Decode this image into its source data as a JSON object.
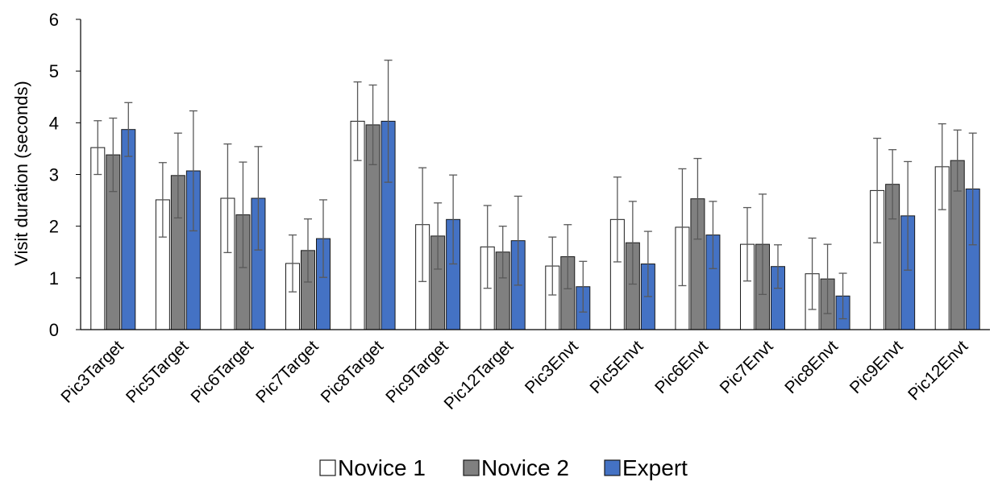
{
  "chart_data": {
    "type": "bar",
    "ylabel": "Visit duration (seconds)",
    "xlabel": "",
    "ylim": [
      0,
      6
    ],
    "yticks": [
      0,
      1,
      2,
      3,
      4,
      5,
      6
    ],
    "grid": false,
    "legend_position": "bottom",
    "categories": [
      "Pic3Target",
      "Pic5Target",
      "Pic6Target",
      "Pic7Target",
      "Pic8Target",
      "Pic9Target",
      "Pic12Target",
      "Pic3Envt",
      "Pic5Envt",
      "Pic6Envt",
      "Pic7Envt",
      "Pic8Envt",
      "Pic9Envt",
      "Pic12Envt"
    ],
    "series": [
      {
        "name": "Novice 1",
        "color": "#ffffff",
        "values": [
          3.52,
          2.51,
          2.54,
          1.28,
          4.03,
          2.03,
          1.6,
          1.23,
          2.13,
          1.98,
          1.65,
          1.08,
          2.69,
          3.15
        ],
        "error": [
          0.52,
          0.72,
          1.05,
          0.55,
          0.76,
          1.1,
          0.8,
          0.56,
          0.82,
          1.13,
          0.71,
          0.69,
          1.01,
          0.83
        ]
      },
      {
        "name": "Novice 2",
        "color": "#808080",
        "values": [
          3.38,
          2.98,
          2.22,
          1.53,
          3.96,
          1.81,
          1.5,
          1.41,
          1.68,
          2.53,
          1.65,
          0.98,
          2.81,
          3.27
        ],
        "error": [
          0.71,
          0.82,
          1.02,
          0.61,
          0.77,
          0.64,
          0.5,
          0.62,
          0.8,
          0.78,
          0.97,
          0.67,
          0.67,
          0.59
        ]
      },
      {
        "name": "Expert",
        "color": "#4472c4",
        "values": [
          3.87,
          3.07,
          2.54,
          1.76,
          4.03,
          2.13,
          1.72,
          0.83,
          1.27,
          1.83,
          1.22,
          0.65,
          2.2,
          2.72
        ],
        "error": [
          0.52,
          1.16,
          1.0,
          0.75,
          1.18,
          0.86,
          0.86,
          0.49,
          0.63,
          0.65,
          0.42,
          0.44,
          1.05,
          1.08
        ]
      }
    ]
  }
}
